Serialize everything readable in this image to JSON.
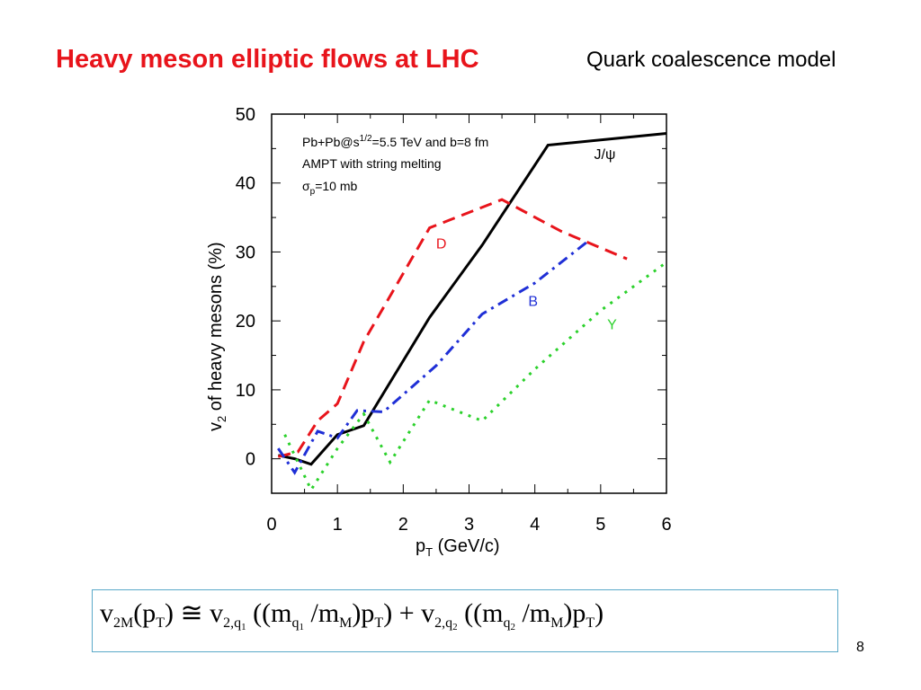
{
  "slide": {
    "title": "Heavy meson elliptic flows at LHC",
    "subtitle": "Quark coalescence model",
    "page_number": "8",
    "formula": {
      "v": "v",
      "sub_2M": "2M",
      "open_paren": "(",
      "p": "p",
      "sub_T": "T",
      "close_paren": ")",
      "approx": "≅",
      "sub_2q": "2,q",
      "sub_1": "1",
      "sub_2": "2",
      "m": "m",
      "sub_q": "q",
      "slash": "/",
      "sub_M": "M",
      "plus": "+",
      "dbl_paren": "(("
    }
  },
  "chart_data": {
    "type": "line",
    "xlabel": "p",
    "xlabel_sub": "T",
    "xlabel_unit": "(GeV/c)",
    "ylabel": "v",
    "ylabel_sub": "2",
    "ylabel_rest": "of heavy mesons (%)",
    "xlim": [
      0,
      6
    ],
    "ylim": [
      -5,
      50
    ],
    "x_ticks": [
      0,
      1,
      2,
      3,
      4,
      5,
      6
    ],
    "y_ticks": [
      0,
      10,
      20,
      30,
      40,
      50
    ],
    "annotations": {
      "line1_prefix": "Pb+Pb@s",
      "line1_sup": "1/2",
      "line1_suffix": "=5.5 TeV and b=8 fm",
      "line2": "AMPT with string melting",
      "line3_prefix": "σ",
      "line3_sub": "p",
      "line3_suffix": "=10 mb"
    },
    "series": [
      {
        "name": "J/ψ",
        "color": "#000000",
        "style": "solid",
        "label_at": [
          4.9,
          43.5
        ],
        "x": [
          0.1,
          0.35,
          0.6,
          1.0,
          1.4,
          2.4,
          3.2,
          4.2,
          6.0
        ],
        "y": [
          0.5,
          0.0,
          -0.8,
          3.5,
          4.8,
          20.5,
          31.0,
          45.5,
          47.2
        ]
      },
      {
        "name": "D",
        "color": "#e8141b",
        "style": "dashed",
        "label_at": [
          2.5,
          30.5
        ],
        "x": [
          0.1,
          0.4,
          0.7,
          1.0,
          1.4,
          2.4,
          3.5,
          4.4,
          5.4
        ],
        "y": [
          0.3,
          1.0,
          5.5,
          8.0,
          17.0,
          33.5,
          37.6,
          33.0,
          29.0
        ]
      },
      {
        "name": "B",
        "color": "#1f2fd6",
        "style": "dashdot",
        "label_at": [
          3.9,
          22.2
        ],
        "x": [
          0.1,
          0.35,
          0.7,
          1.0,
          1.3,
          1.7,
          2.5,
          3.2,
          4.0,
          4.8
        ],
        "y": [
          1.5,
          -2.0,
          4.0,
          3.0,
          7.0,
          6.8,
          13.5,
          21.0,
          25.5,
          31.5
        ]
      },
      {
        "name": "Υ",
        "color": "#2bd12b",
        "style": "dotted",
        "label_at": [
          5.1,
          18.8
        ],
        "x": [
          0.2,
          0.6,
          1.0,
          1.4,
          1.8,
          2.4,
          3.2,
          4.0,
          5.0,
          6.0
        ],
        "y": [
          3.5,
          -4.5,
          1.5,
          6.5,
          -0.5,
          8.5,
          5.5,
          13.0,
          21.5,
          28.5
        ]
      }
    ]
  }
}
